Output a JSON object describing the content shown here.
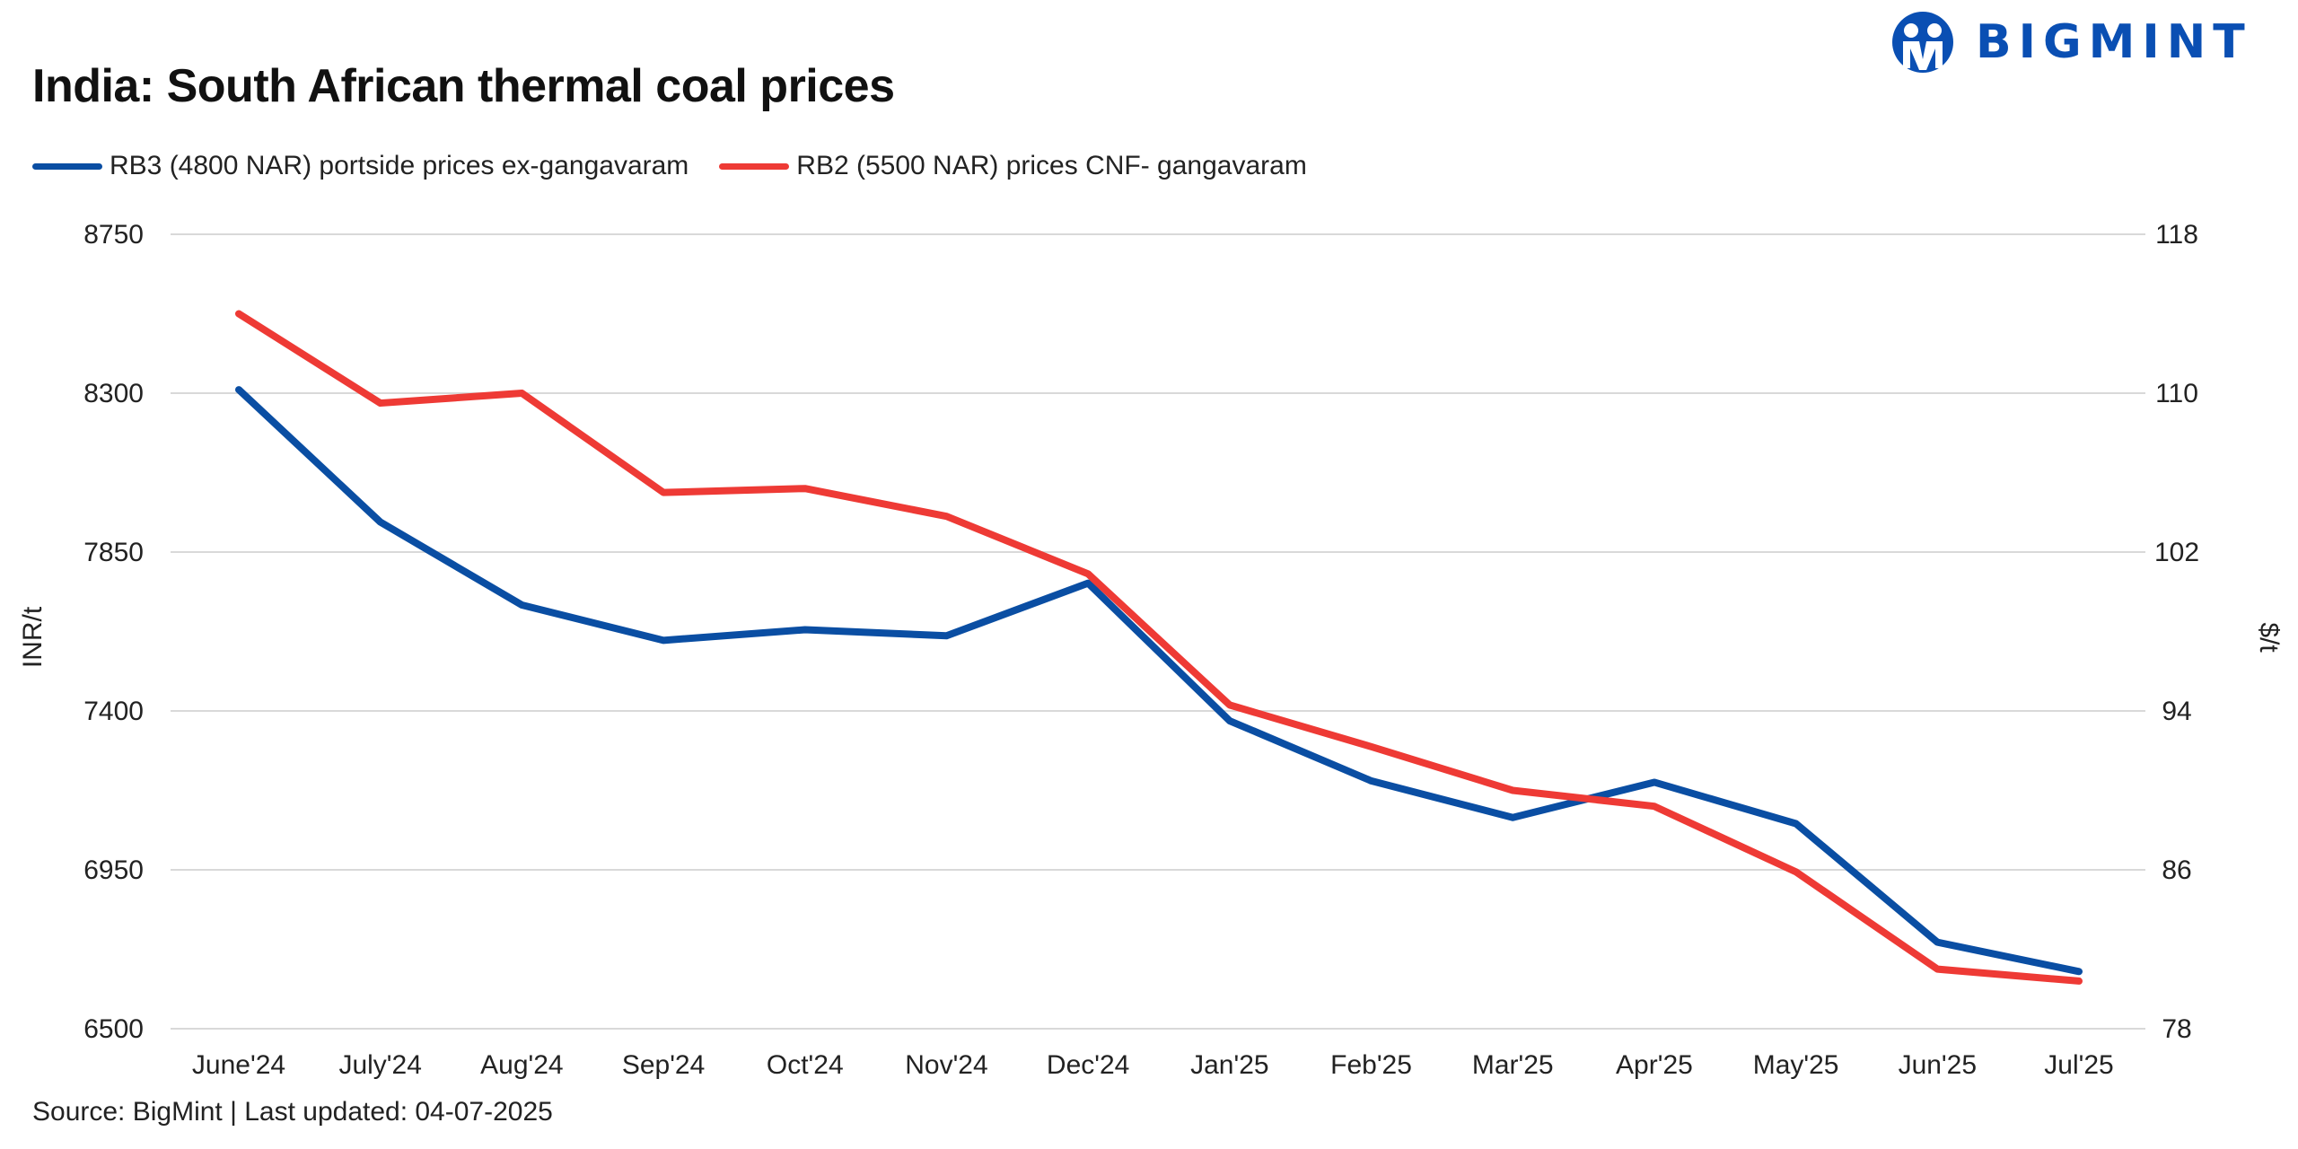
{
  "brand": {
    "name": "BIGMINT",
    "color": "#0a4fb3"
  },
  "footer": {
    "source": "Source: BigMint | Last updated: 04-07-2025"
  },
  "chart_data": {
    "type": "line",
    "title": "India: South African thermal coal prices",
    "categories": [
      "June'24",
      "July'24",
      "Aug'24",
      "Sep'24",
      "Oct'24",
      "Nov'24",
      "Dec'24",
      "Jan'25",
      "Feb'25",
      "Mar'25",
      "Apr'25",
      "May'25",
      "Jun'25",
      "Jul'25"
    ],
    "ylabel": "INR/t",
    "y2label": "$/t",
    "ylim": [
      6500,
      8750
    ],
    "yticks": [
      "6500",
      "6950",
      "7400",
      "7850",
      "8300",
      "8750"
    ],
    "y2lim": [
      78,
      118
    ],
    "y2ticks": [
      "78",
      "86",
      "94",
      "102",
      "110",
      "118"
    ],
    "grid": true,
    "legend": "top-left",
    "series": [
      {
        "name": "RB3 (4800 NAR) portside prices ex-gangavaram",
        "axis": "left",
        "color": "#0a4ea3",
        "values": [
          8310,
          7935,
          7700,
          7600,
          7630,
          7613,
          7762,
          7372,
          7202,
          7098,
          7198,
          7081,
          6745,
          6662
        ]
      },
      {
        "name": "RB2 (5500 NAR) prices CNF- gangavaram",
        "axis": "right",
        "color": "#ee3a35",
        "values": [
          114.0,
          109.5,
          110.0,
          105.0,
          105.2,
          103.8,
          100.9,
          94.3,
          92.2,
          90.0,
          89.2,
          85.9,
          81.0,
          80.4
        ]
      }
    ]
  }
}
